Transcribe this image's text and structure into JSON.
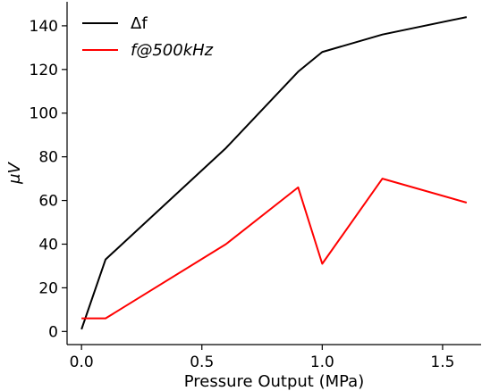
{
  "chart_data": {
    "type": "line",
    "title": "",
    "xlabel": "Pressure Output (MPa)",
    "ylabel": "μV",
    "xlim": [
      -0.06,
      1.66
    ],
    "ylim": [
      -6,
      151
    ],
    "xticks": [
      0.0,
      0.5,
      1.0,
      1.5
    ],
    "xtick_labels": [
      "0.0",
      "0.5",
      "1.0",
      "1.5"
    ],
    "yticks": [
      0,
      20,
      40,
      60,
      80,
      100,
      120,
      140
    ],
    "ytick_labels": [
      "0",
      "20",
      "40",
      "60",
      "80",
      "100",
      "120",
      "140"
    ],
    "grid": false,
    "legend_position": "top-left",
    "series": [
      {
        "name": "Δf",
        "color": "#000000",
        "x": [
          0.0,
          0.1,
          0.6,
          0.9,
          1.0,
          1.25,
          1.6
        ],
        "y": [
          1,
          33,
          84,
          119,
          128,
          136,
          144
        ]
      },
      {
        "name": "f@500kHz",
        "color": "#ff0000",
        "x": [
          0.0,
          0.1,
          0.6,
          0.9,
          1.0,
          1.25,
          1.6
        ],
        "y": [
          6,
          6,
          40,
          66,
          31,
          70,
          59
        ]
      }
    ]
  }
}
